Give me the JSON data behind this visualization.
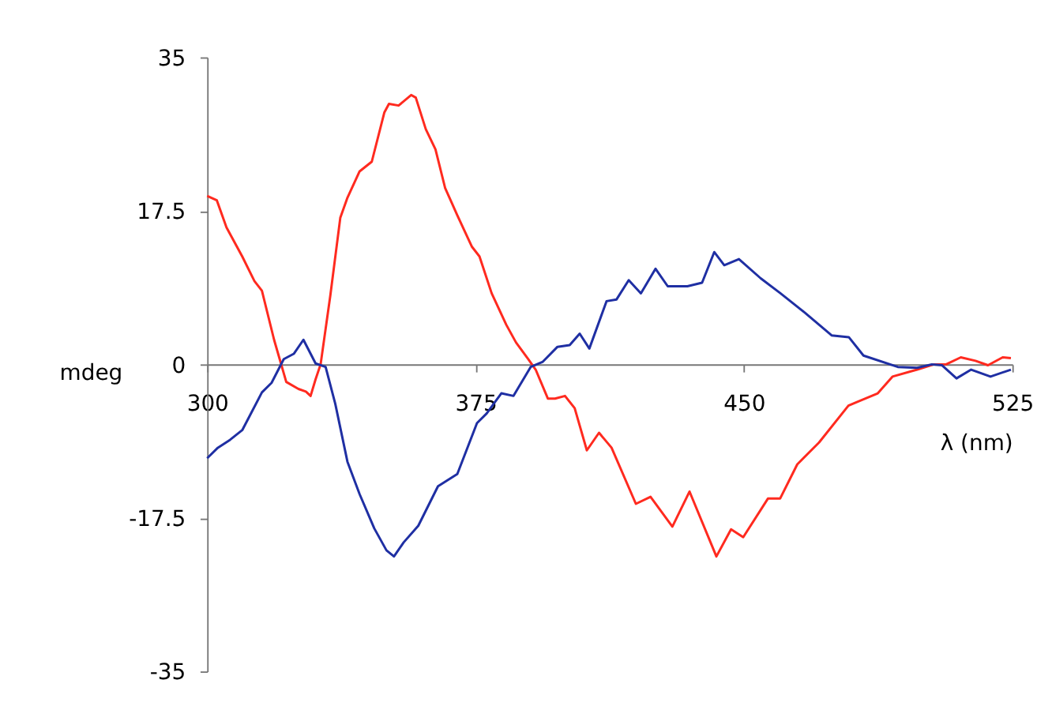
{
  "chart_data": {
    "type": "line",
    "xlabel": "λ (nm)",
    "ylabel": "mdeg",
    "xlim": [
      300,
      525
    ],
    "xticks": [
      300,
      375,
      450,
      525
    ],
    "ylim": [
      -35,
      35
    ],
    "yticks": [
      -35,
      -17.5,
      0,
      17.5,
      35
    ],
    "grid": false,
    "legend": false,
    "line_style": "solid",
    "marker": "none",
    "series": [
      {
        "color": "#ff2a1f",
        "x": [
          300,
          302.7,
          305.4,
          309.8,
          313.2,
          315.3,
          318.7,
          322.1,
          325.5,
          327.6,
          328.9,
          330.3,
          331.7,
          334.4,
          337.2,
          339.2,
          342.6,
          346.0,
          349.5,
          350.8,
          353.5,
          357.0,
          358.3,
          361.1,
          363.8,
          366.5,
          369.9,
          374.0,
          376.1,
          379.5,
          383.6,
          386.3,
          389.7,
          391.8,
          395.2,
          397.2,
          400.0,
          402.7,
          406.1,
          409.5,
          413.0,
          419.8,
          423.9,
          430.0,
          434.8,
          442.3,
          446.4,
          449.8,
          456.7,
          460.1,
          464.9,
          471.0,
          479.2,
          487.4,
          491.5,
          498.4,
          503.1,
          506.5,
          510.6,
          514.7,
          518.2,
          522.3,
          524.6
        ],
        "values": [
          19.2,
          18.7,
          15.6,
          12.3,
          9.5,
          8.4,
          2.8,
          -2.0,
          -2.8,
          -3.1,
          -3.6,
          -1.7,
          0,
          7.8,
          16.7,
          19.0,
          22.0,
          23.1,
          28.7,
          29.7,
          29.5,
          30.7,
          30.4,
          26.8,
          24.5,
          20.1,
          17.0,
          13.4,
          12.3,
          8.1,
          4.5,
          2.5,
          0.6,
          -0.6,
          -3.9,
          -3.9,
          -3.6,
          -5.0,
          -9.8,
          -7.8,
          -9.5,
          -15.9,
          -15.1,
          -18.5,
          -14.5,
          -21.9,
          -18.8,
          -19.7,
          -15.3,
          -15.3,
          -11.4,
          -8.9,
          -4.7,
          -3.3,
          -1.4,
          -0.6,
          0,
          0,
          0.8,
          0.4,
          -0.1,
          0.8,
          0.7
        ]
      },
      {
        "color": "#1f2fa3",
        "x": [
          300,
          303.0,
          306.4,
          309.8,
          315.3,
          318.0,
          321.4,
          324.2,
          326.9,
          330.3,
          333.1,
          335.8,
          339.2,
          342.6,
          346.7,
          350.1,
          352.2,
          354.9,
          359.0,
          364.5,
          369.9,
          375.4,
          378.1,
          382.2,
          385.6,
          390.4,
          393.8,
          397.9,
          401.3,
          404.1,
          406.8,
          411.6,
          414.4,
          417.8,
          421.2,
          425.3,
          428.7,
          434.2,
          438.3,
          441.7,
          444.5,
          448.6,
          454.7,
          460.2,
          467.0,
          474.5,
          479.3,
          483.4,
          493.0,
          498.4,
          502.5,
          505.3,
          509.4,
          513.5,
          518.9,
          524.6
        ],
        "values": [
          -10.7,
          -9.5,
          -8.6,
          -7.5,
          -3.2,
          -2.1,
          0.6,
          1.2,
          2.8,
          0.1,
          -0.3,
          -4.5,
          -11.1,
          -14.8,
          -18.7,
          -21.2,
          -21.9,
          -20.3,
          -18.4,
          -13.9,
          -12.5,
          -6.7,
          -5.6,
          -3.3,
          -3.6,
          -0.3,
          0.3,
          2.0,
          2.2,
          3.5,
          1.8,
          7.2,
          7.4,
          9.6,
          8.1,
          10.9,
          8.9,
          8.9,
          9.3,
          12.8,
          11.3,
          12.0,
          9.8,
          8.1,
          5.9,
          3.3,
          3.1,
          1.0,
          -0.3,
          -0.4,
          0,
          -0.1,
          -1.6,
          -0.6,
          -1.4,
          -0.6
        ]
      }
    ]
  }
}
